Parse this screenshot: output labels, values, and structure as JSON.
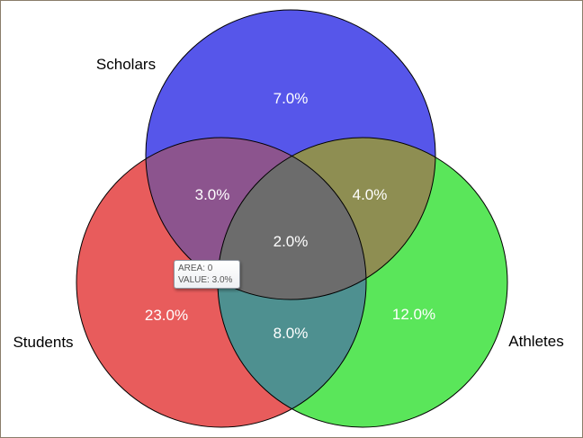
{
  "chart_data": {
    "type": "venn",
    "sets": [
      {
        "name": "Scholars",
        "color": "#3c3ce6"
      },
      {
        "name": "Students",
        "color": "#e44848"
      },
      {
        "name": "Athletes",
        "color": "#44e444"
      }
    ],
    "regions": [
      {
        "sets": [
          "Scholars"
        ],
        "label": "7.0%",
        "value": 7.0
      },
      {
        "sets": [
          "Students"
        ],
        "label": "23.0%",
        "value": 23.0
      },
      {
        "sets": [
          "Athletes"
        ],
        "label": "12.0%",
        "value": 12.0
      },
      {
        "sets": [
          "Scholars",
          "Students"
        ],
        "label": "3.0%",
        "value": 3.0
      },
      {
        "sets": [
          "Scholars",
          "Athletes"
        ],
        "label": "4.0%",
        "value": 4.0
      },
      {
        "sets": [
          "Students",
          "Athletes"
        ],
        "label": "8.0%",
        "value": 8.0
      },
      {
        "sets": [
          "Scholars",
          "Students",
          "Athletes"
        ],
        "label": "2.0%",
        "value": 2.0
      }
    ]
  },
  "tooltip": {
    "area_line": "AREA: 0",
    "value_line": "VALUE: 3.0%"
  }
}
